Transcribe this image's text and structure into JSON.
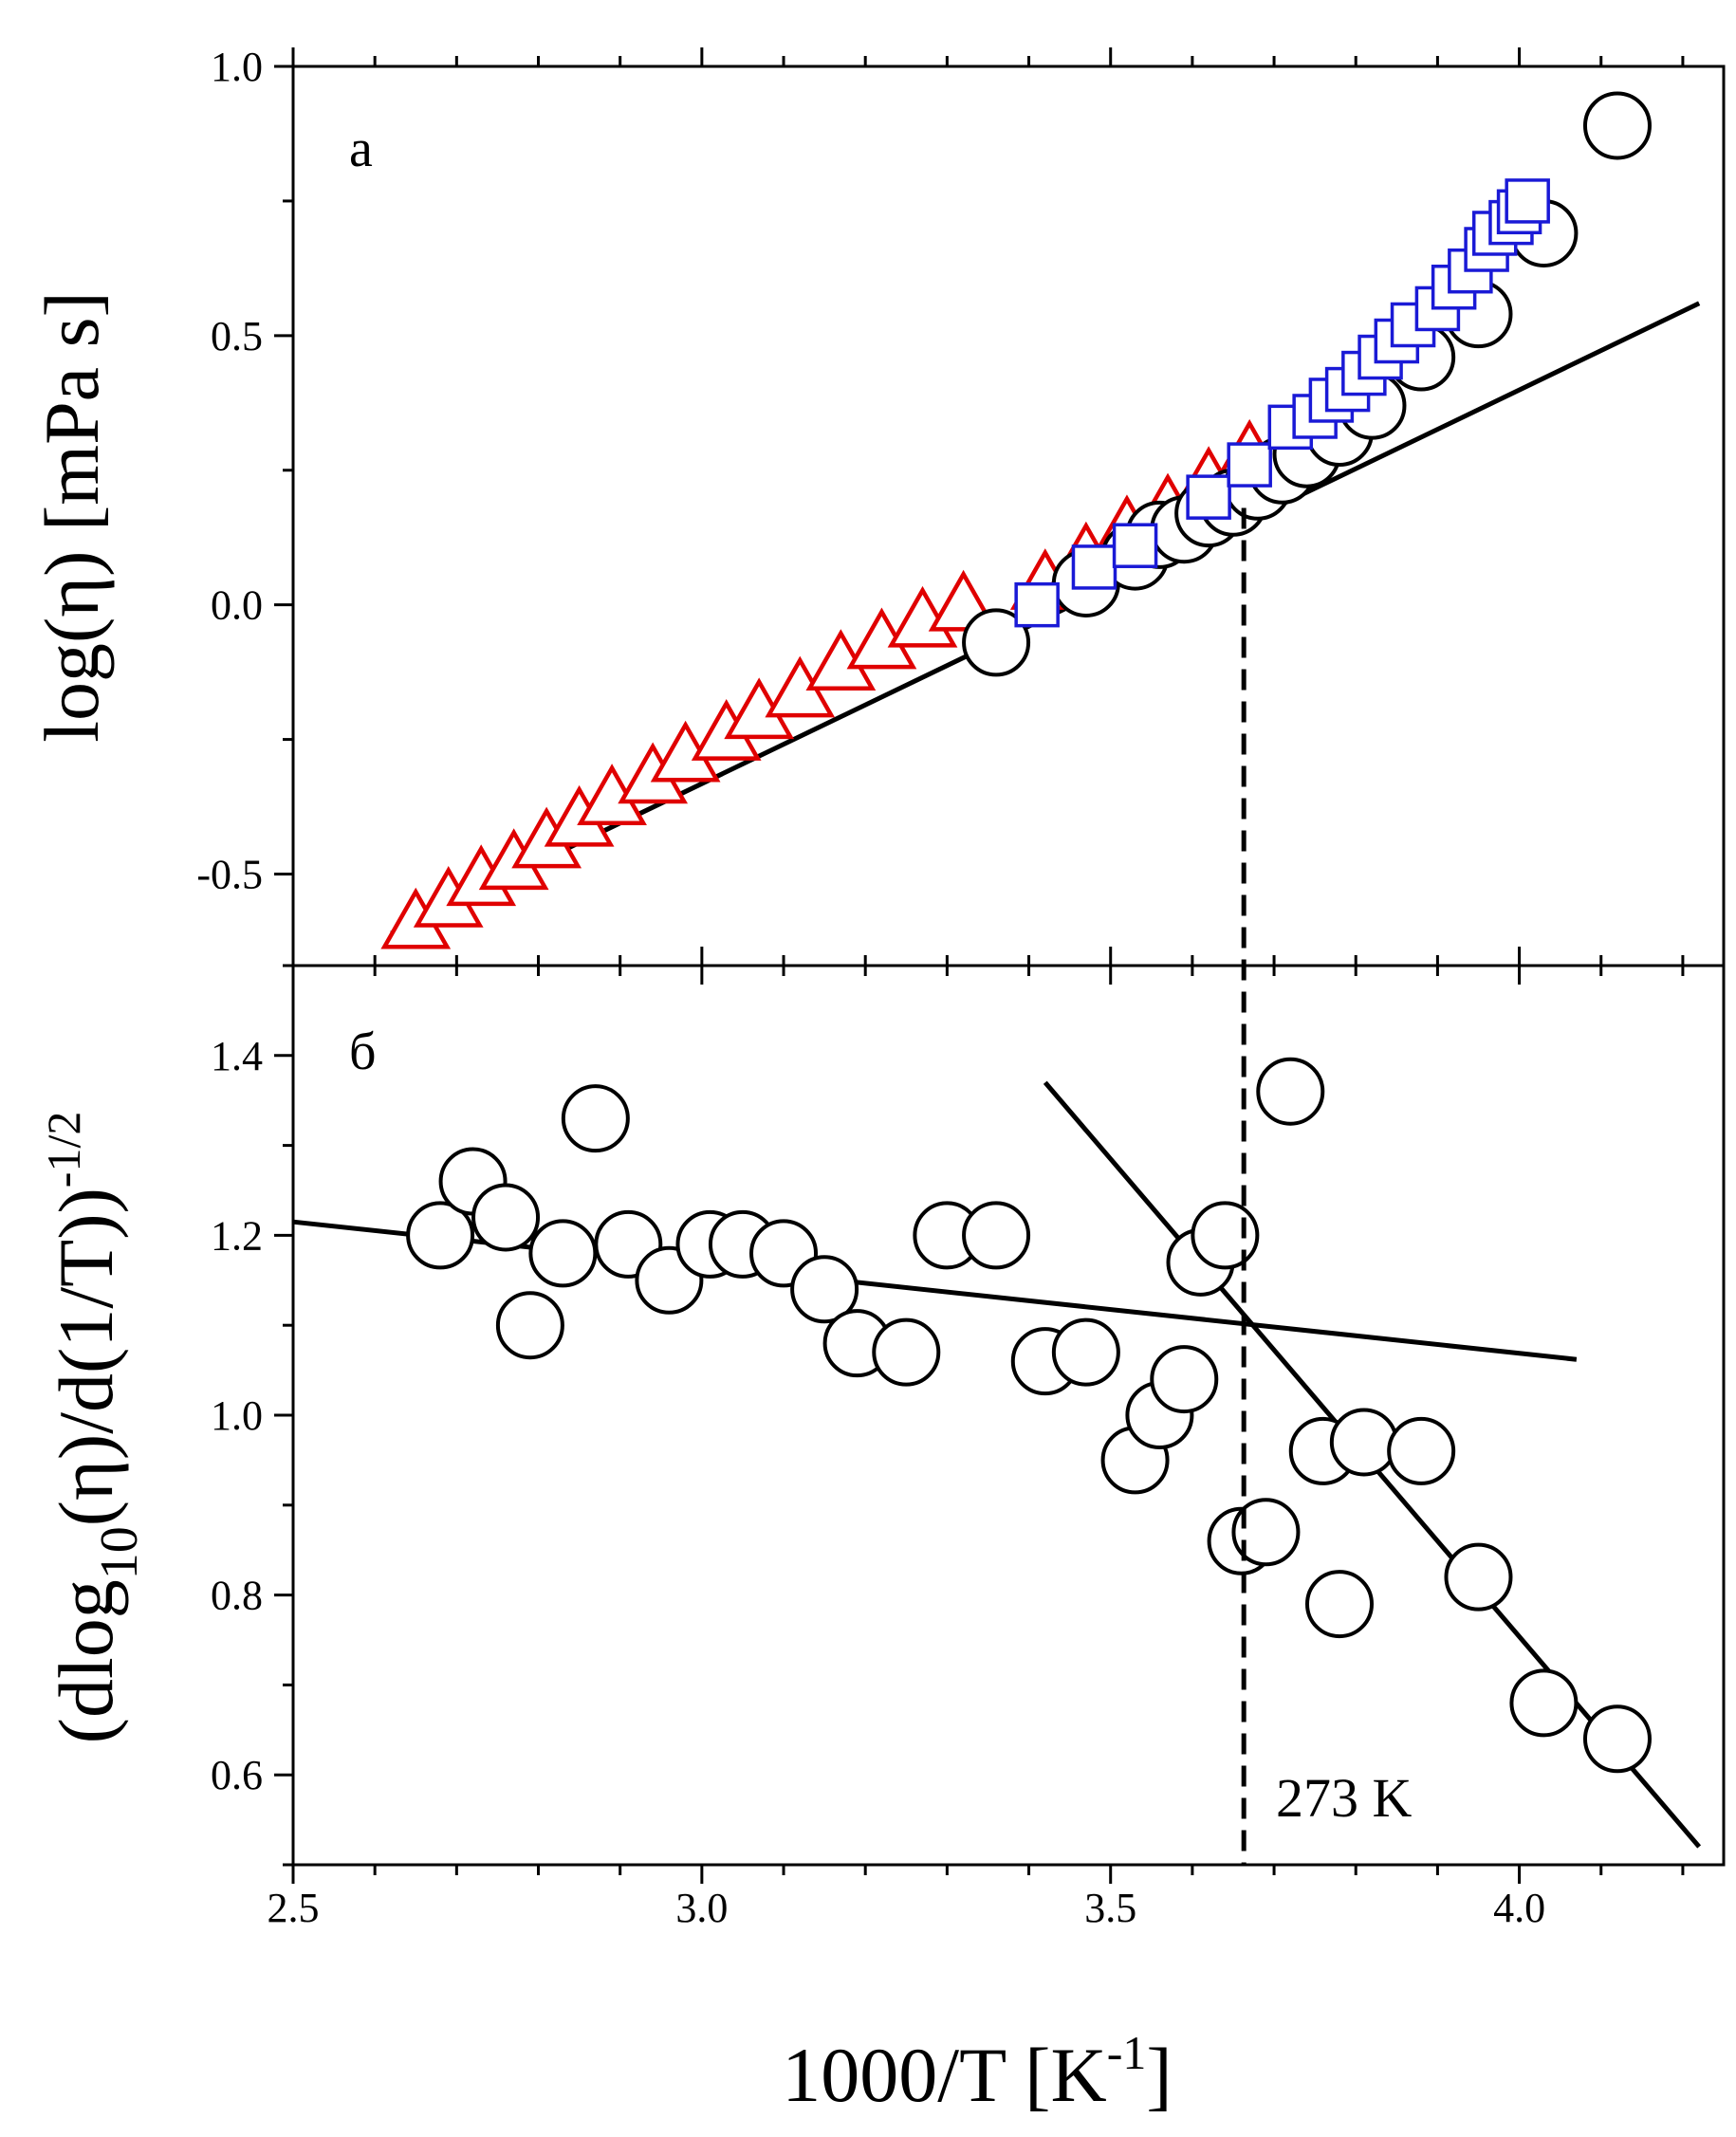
{
  "chart_data": [
    {
      "type": "scatter",
      "panel_label": "а",
      "ylabel": "log(η) [mPa s]",
      "xlim": [
        2.5,
        4.25
      ],
      "ylim": [
        -0.67,
        1.0
      ],
      "y_ticks": [
        -0.5,
        0.0,
        0.5,
        1.0
      ],
      "y_tick_labels": [
        "-0.5",
        "0.0",
        "0.5",
        "1.0"
      ],
      "series": [
        {
          "name": "triangles",
          "marker": "triangle",
          "color": "#e00000",
          "x": [
            2.65,
            2.69,
            2.73,
            2.77,
            2.81,
            2.85,
            2.89,
            2.94,
            2.98,
            3.03,
            3.07,
            3.12,
            3.17,
            3.22,
            3.27,
            3.32,
            3.42,
            3.47,
            3.52,
            3.57,
            3.62,
            3.67
          ],
          "y": [
            -0.6,
            -0.56,
            -0.52,
            -0.49,
            -0.45,
            -0.41,
            -0.37,
            -0.33,
            -0.29,
            -0.25,
            -0.21,
            -0.17,
            -0.12,
            -0.08,
            -0.04,
            -0.01,
            0.03,
            0.08,
            0.13,
            0.17,
            0.22,
            0.27
          ]
        },
        {
          "name": "circles",
          "marker": "circle",
          "color": "#000000",
          "x": [
            3.36,
            3.47,
            3.53,
            3.56,
            3.59,
            3.62,
            3.65,
            3.68,
            3.71,
            3.74,
            3.78,
            3.82,
            3.88,
            3.95,
            4.03,
            4.12
          ],
          "y": [
            -0.07,
            0.04,
            0.09,
            0.13,
            0.14,
            0.17,
            0.19,
            0.22,
            0.25,
            0.28,
            0.32,
            0.37,
            0.46,
            0.54,
            0.69,
            0.89
          ]
        },
        {
          "name": "squares",
          "marker": "square",
          "color": "#1a1ad6",
          "x": [
            3.41,
            3.48,
            3.53,
            3.62,
            3.67,
            3.72,
            3.75,
            3.77,
            3.79,
            3.81,
            3.83,
            3.85,
            3.87,
            3.9,
            3.92,
            3.94,
            3.96,
            3.97,
            3.99,
            4.0,
            4.01
          ],
          "y": [
            0.0,
            0.07,
            0.11,
            0.2,
            0.26,
            0.33,
            0.35,
            0.38,
            0.4,
            0.43,
            0.46,
            0.49,
            0.52,
            0.55,
            0.59,
            0.62,
            0.66,
            0.69,
            0.71,
            0.73,
            0.75
          ]
        }
      ],
      "fit_lines": [
        {
          "x": [
            2.62,
            4.22
          ],
          "y": [
            -0.61,
            0.56
          ]
        }
      ]
    },
    {
      "type": "scatter",
      "panel_label": "б",
      "ylabel": "(dlog10(η)/d(1/T))-1/2",
      "ylabel_parts": {
        "open": "(dlog",
        "sub": "10",
        "mid": "(η)/d(1/T))",
        "sup": "-1/2"
      },
      "xlabel": "1000/T [K-1]",
      "xlabel_parts": {
        "main": "1000/T [K",
        "sup": "-1",
        "close": "]"
      },
      "xlim": [
        2.5,
        4.25
      ],
      "ylim": [
        0.5,
        1.5
      ],
      "x_ticks": [
        2.5,
        3.0,
        3.5,
        4.0
      ],
      "x_tick_labels": [
        "2.5",
        "3.0",
        "3.5",
        "4.0"
      ],
      "y_ticks": [
        0.6,
        0.8,
        1.0,
        1.2,
        1.4
      ],
      "y_tick_labels": [
        "0.6",
        "0.8",
        "1.0",
        "1.2",
        "1.4"
      ],
      "series": [
        {
          "name": "circles",
          "marker": "circle",
          "color": "#000000",
          "x": [
            2.68,
            2.72,
            2.76,
            2.79,
            2.83,
            2.87,
            2.91,
            2.96,
            3.01,
            3.05,
            3.1,
            3.15,
            3.19,
            3.25,
            3.3,
            3.36,
            3.42,
            3.47,
            3.53,
            3.56,
            3.59,
            3.61,
            3.64,
            3.66,
            3.69,
            3.72,
            3.76,
            3.78,
            3.81,
            3.88,
            3.95,
            4.03,
            4.12
          ],
          "y": [
            1.2,
            1.26,
            1.22,
            1.1,
            1.18,
            1.33,
            1.19,
            1.15,
            1.19,
            1.19,
            1.18,
            1.14,
            1.08,
            1.07,
            1.2,
            1.2,
            1.06,
            1.07,
            0.95,
            1.0,
            1.04,
            1.17,
            1.2,
            0.86,
            0.87,
            1.36,
            0.96,
            0.79,
            0.97,
            0.96,
            0.82,
            0.68,
            0.64
          ]
        }
      ],
      "fit_lines": [
        {
          "x": [
            2.5,
            4.07
          ],
          "y": [
            1.215,
            1.062
          ]
        },
        {
          "x": [
            3.42,
            4.22
          ],
          "y": [
            1.37,
            0.52
          ]
        }
      ],
      "annotation": "273 K"
    }
  ],
  "shared_vline_x": 3.663
}
